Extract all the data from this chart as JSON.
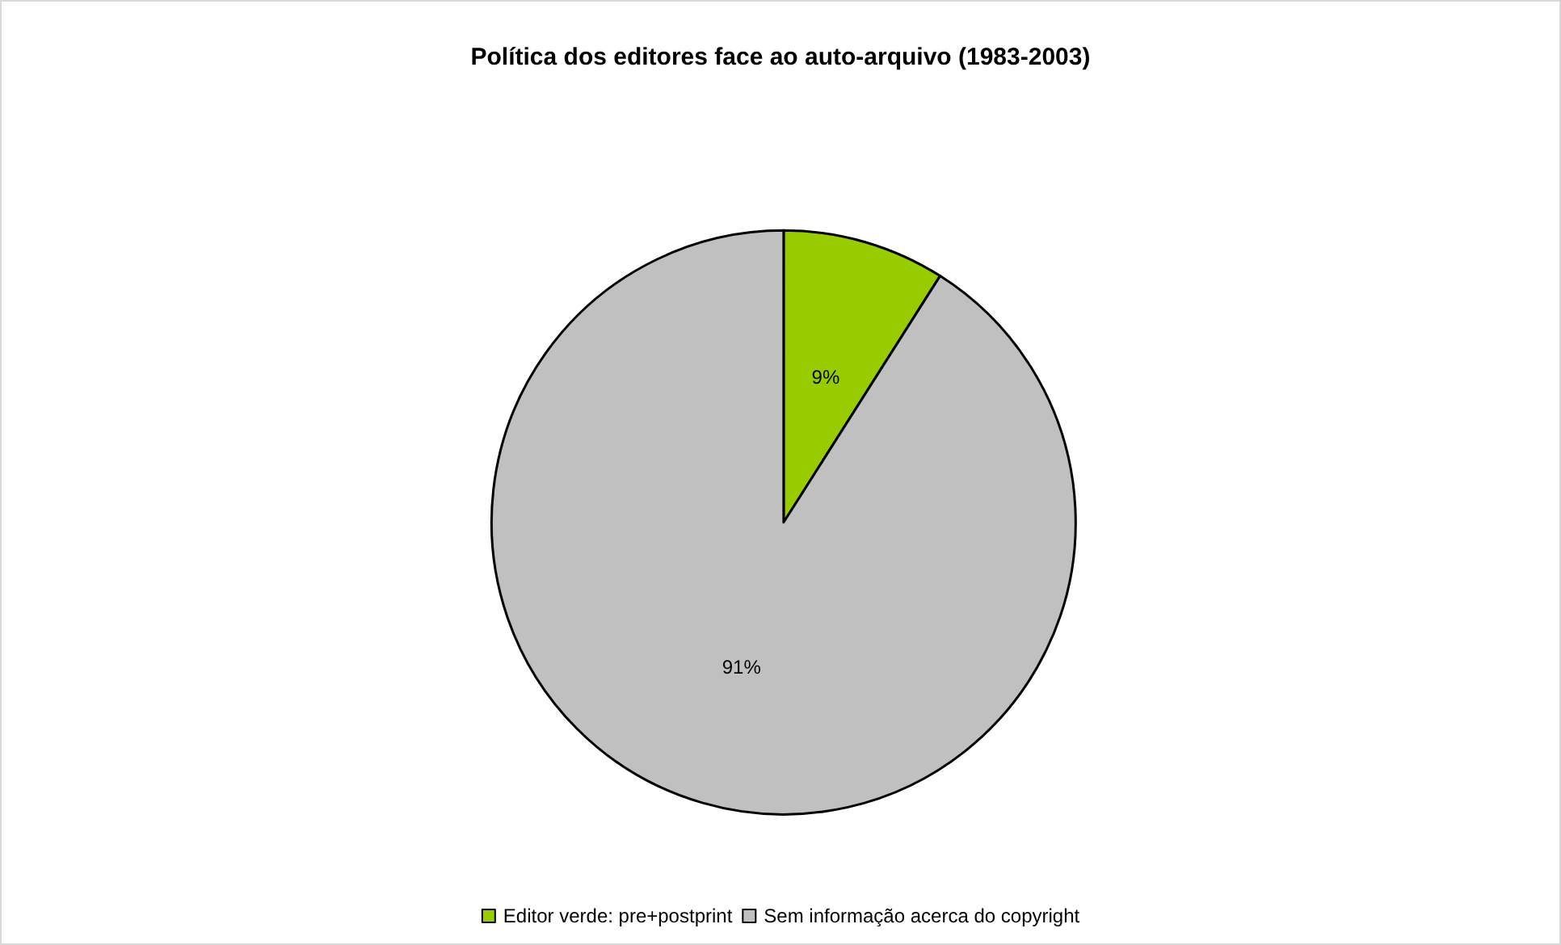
{
  "chart_data": {
    "type": "pie",
    "title": "Política dos editores face ao auto-arquivo (1983-2003)",
    "categories": [
      "Editor verde: pre+postprint",
      "Sem informação acerca do copyright"
    ],
    "values": [
      9,
      91
    ],
    "colors": [
      "#99cc00",
      "#c0c0c0"
    ],
    "value_labels": [
      "9%",
      "91%"
    ],
    "legend": "bottom"
  }
}
